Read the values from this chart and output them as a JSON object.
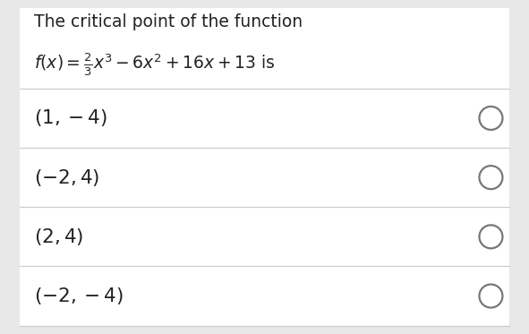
{
  "background_color": "#e8e8e8",
  "card_color": "#ffffff",
  "question_line1": "The critical point of the function",
  "question_line2": "$f(x) = \\frac{2}{3}x^3 - 6x^2 + 16x + 13$ is",
  "options": [
    "$(1, -4)$",
    "$(-2, 4)$",
    "$(2, 4)$",
    "$(-2, -4)$"
  ],
  "text_color": "#222222",
  "circle_edge_color": "#777777",
  "divider_color": "#cccccc",
  "question_fontsize": 13.5,
  "option_fontsize": 15.5,
  "figsize": [
    5.91,
    3.73
  ],
  "dpi": 100
}
